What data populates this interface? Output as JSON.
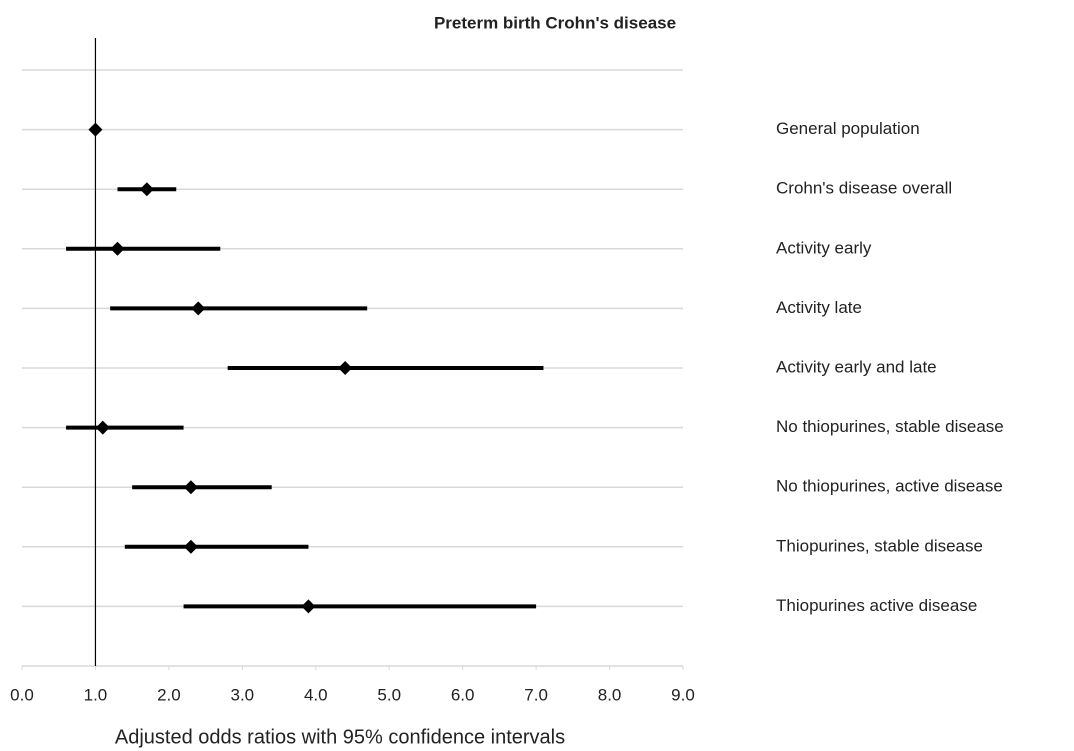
{
  "chart_data": {
    "type": "forest",
    "title": "Preterm birth Crohn's disease",
    "x_label": "Adjusted odds ratios with 95% confidence intervals",
    "categories": [
      "General population",
      "Crohn's disease overall",
      "Activity early",
      "Activity late",
      "Activity early and late",
      "No thiopurines, stable disease",
      "No thiopurines, active disease",
      "Thiopurines, stable disease",
      "Thiopurines active disease"
    ],
    "values": [
      1.0,
      1.7,
      1.3,
      2.4,
      4.4,
      1.1,
      2.3,
      2.3,
      3.9
    ],
    "lower": [
      null,
      1.3,
      0.6,
      1.2,
      2.8,
      0.6,
      1.5,
      1.4,
      2.2
    ],
    "upper": [
      null,
      2.1,
      2.7,
      4.7,
      7.1,
      2.2,
      3.4,
      3.9,
      7.0
    ],
    "color": "#000000",
    "xlim": [
      0,
      9
    ],
    "xticks": [
      {
        "value": 0,
        "label": "0.0"
      },
      {
        "value": 1,
        "label": "1.0"
      },
      {
        "value": 2,
        "label": "2.0"
      },
      {
        "value": 3,
        "label": "3.0"
      },
      {
        "value": 4,
        "label": "4.0"
      },
      {
        "value": 5,
        "label": "5.0"
      },
      {
        "value": 6,
        "label": "6.0"
      },
      {
        "value": 7,
        "label": "7.0"
      },
      {
        "value": 8,
        "label": "8.0"
      },
      {
        "value": 9,
        "label": "9.0"
      }
    ],
    "reference_line": 1,
    "grid": true
  }
}
